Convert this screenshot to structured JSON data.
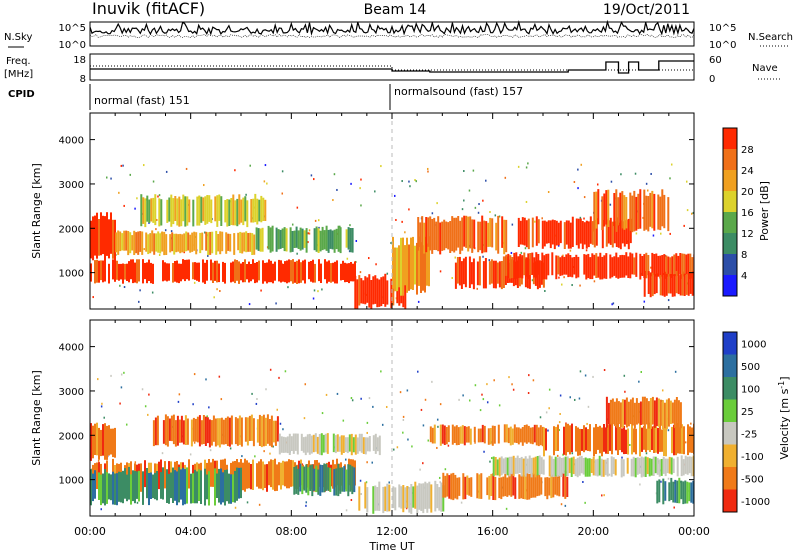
{
  "header": {
    "station": "Inuvik (fitACF)",
    "beam": "Beam 14",
    "date": "19/Oct/2011"
  },
  "panel_labels": {
    "nsky": "N.Sky",
    "nsearch": "N.Search",
    "freq_line1": "Freq.",
    "freq_line2": "[MHz]",
    "nave": "Nave",
    "cpid": "CPID"
  },
  "noise_axis": {
    "left_ticks": [
      "10^5",
      "10^0"
    ],
    "right_ticks": [
      "10^5",
      "10^0"
    ]
  },
  "freq_axis": {
    "left_ticks": [
      "18",
      "8"
    ],
    "right_ticks": [
      "60",
      "0"
    ]
  },
  "cpid_segments": [
    {
      "label": "normal (fast) 151",
      "start_hour": 0
    },
    {
      "label": "normalsound (fast) 157",
      "start_hour": 12
    }
  ],
  "time_axis": {
    "xlabel": "Time UT",
    "ticks": [
      "00:00",
      "04:00",
      "08:00",
      "12:00",
      "16:00",
      "20:00",
      "00:00"
    ]
  },
  "range_axis": {
    "ylabel": "Slant Range [km]",
    "ticks": [
      "1000",
      "2000",
      "3000",
      "4000"
    ]
  },
  "power_scale": {
    "label": "Power [dB]",
    "ticks": [
      "4",
      "8",
      "12",
      "16",
      "20",
      "24",
      "28"
    ],
    "colors": [
      "#1a1aff",
      "#2c4ea8",
      "#3c8c64",
      "#5aa84a",
      "#dcd22c",
      "#f0a020",
      "#f07018",
      "#ff2a00"
    ]
  },
  "velocity_scale": {
    "label": "Velocity [m s^-1]",
    "ticks": [
      "1000",
      "500",
      "100",
      "25",
      "-25",
      "-100",
      "-500",
      "-1000"
    ],
    "colors": [
      "#1f3fc8",
      "#2c6fa0",
      "#3c8c64",
      "#6acd3a",
      "#c8c8c0",
      "#f0b030",
      "#f07a18",
      "#f02a10"
    ]
  },
  "chart_data": {
    "type": "heatmap",
    "title": "Inuvik (fitACF)",
    "xlabel": "Time UT",
    "xlim": [
      "00:00",
      "24:00"
    ],
    "ylim_km": [
      180,
      4600
    ],
    "panels": [
      {
        "name": "Power [dB]",
        "scale": [
          0,
          30
        ],
        "regions": [
          {
            "t0": 0.0,
            "t1": 1.0,
            "r0": 1350,
            "r1": 2250,
            "level": 7
          },
          {
            "t0": 0.0,
            "t1": 10.5,
            "r0": 800,
            "r1": 1250,
            "level": 7
          },
          {
            "t0": 1.0,
            "t1": 6.5,
            "r0": 1450,
            "r1": 1900,
            "level": 5
          },
          {
            "t0": 2.0,
            "t1": 7.0,
            "r0": 2100,
            "r1": 2700,
            "level": 4
          },
          {
            "t0": 6.5,
            "t1": 10.5,
            "r0": 1500,
            "r1": 2000,
            "level": 3
          },
          {
            "t0": 10.5,
            "t1": 12.5,
            "r0": 250,
            "r1": 900,
            "level": 7
          },
          {
            "t0": 12.0,
            "t1": 13.5,
            "r0": 600,
            "r1": 1700,
            "level": 5
          },
          {
            "t0": 13.0,
            "t1": 16.5,
            "r0": 1500,
            "r1": 2200,
            "level": 6
          },
          {
            "t0": 14.5,
            "t1": 18.0,
            "r0": 700,
            "r1": 1300,
            "level": 7
          },
          {
            "t0": 16.5,
            "t1": 24.0,
            "r0": 900,
            "r1": 1400,
            "level": 7
          },
          {
            "t0": 17.0,
            "t1": 21.5,
            "r0": 1600,
            "r1": 2200,
            "level": 7
          },
          {
            "t0": 20.0,
            "t1": 23.0,
            "r0": 2000,
            "r1": 2800,
            "level": 6
          },
          {
            "t0": 22.0,
            "t1": 24.0,
            "r0": 500,
            "r1": 1000,
            "level": 7
          }
        ]
      },
      {
        "name": "Velocity [m s^-1]",
        "scale": [
          -1000,
          1000
        ],
        "regions": [
          {
            "t0": 0.0,
            "t1": 1.0,
            "r0": 1500,
            "r1": 2200,
            "level": 6
          },
          {
            "t0": 0.0,
            "t1": 10.5,
            "r0": 800,
            "r1": 1400,
            "level": 6
          },
          {
            "t0": 0.0,
            "t1": 6.0,
            "r0": 500,
            "r1": 1200,
            "level": 2
          },
          {
            "t0": 2.5,
            "t1": 7.5,
            "r0": 1800,
            "r1": 2400,
            "level": 6
          },
          {
            "t0": 7.5,
            "t1": 11.5,
            "r0": 1600,
            "r1": 2000,
            "level": 4
          },
          {
            "t0": 8.0,
            "t1": 10.5,
            "r0": 700,
            "r1": 1300,
            "level": 2
          },
          {
            "t0": 10.5,
            "t1": 14.0,
            "r0": 300,
            "r1": 900,
            "level": 4
          },
          {
            "t0": 13.5,
            "t1": 18.0,
            "r0": 1800,
            "r1": 2200,
            "level": 6
          },
          {
            "t0": 14.0,
            "t1": 19.0,
            "r0": 600,
            "r1": 1100,
            "level": 6
          },
          {
            "t0": 16.0,
            "t1": 24.0,
            "r0": 1100,
            "r1": 1500,
            "level": 4
          },
          {
            "t0": 18.0,
            "t1": 24.0,
            "r0": 1600,
            "r1": 2200,
            "level": 6
          },
          {
            "t0": 20.5,
            "t1": 23.5,
            "r0": 2200,
            "r1": 2800,
            "level": 6
          },
          {
            "t0": 22.5,
            "t1": 24.0,
            "r0": 500,
            "r1": 1000,
            "level": 2
          }
        ]
      }
    ]
  }
}
